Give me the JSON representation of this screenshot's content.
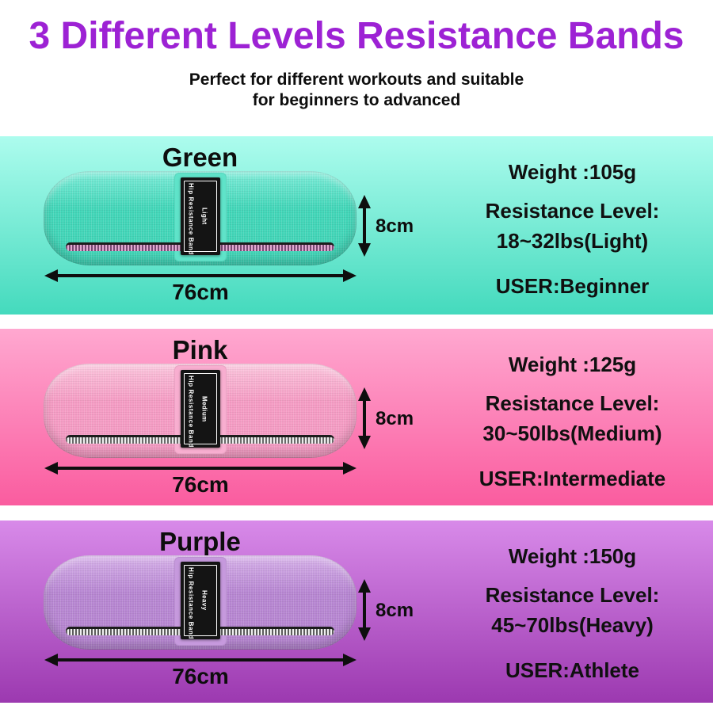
{
  "page": {
    "title": "3 Different Levels Resistance Bands",
    "title_color": "#9d22d4",
    "subtitle": [
      "Perfect for different workouts and suitable",
      "for beginners to advanced"
    ]
  },
  "tag_brand": "Hip Resistance Band",
  "sections": [
    {
      "name": "Green",
      "level": "Light",
      "weight": "Weight :105g",
      "resistance_label": "Resistance Level:",
      "resistance_value": "18~32lbs(Light)",
      "user": "USER:Beginner",
      "length": "76cm",
      "width": "8cm",
      "colors": {
        "bg_top": "#adfcee",
        "bg_bottom": "#44dabd",
        "band": "#41d6b8",
        "band_light": "#7cecd8",
        "tab": "#5fe3c9",
        "strip_dark": "#7a4a74",
        "strip_light": "#e2aad1"
      }
    },
    {
      "name": "Pink",
      "level": "Medium",
      "weight": "Weight :125g",
      "resistance_label": "Resistance Level:",
      "resistance_value": "30~50lbs(Medium)",
      "user": "USER:Intermediate",
      "length": "76cm",
      "width": "8cm",
      "colors": {
        "bg_top": "#ffa8d0",
        "bg_bottom": "#fa5c9f",
        "band": "#f59cc4",
        "band_light": "#fbc4dc",
        "tab": "#f8aed0",
        "strip_dark": "#6a6a6a",
        "strip_light": "#ededed"
      }
    },
    {
      "name": "Purple",
      "level": "Heavy",
      "weight": "Weight :150g",
      "resistance_label": "Resistance Level:",
      "resistance_value": "45~70lbs(Heavy)",
      "user": "USER:Athlete",
      "length": "76cm",
      "width": "8cm",
      "colors": {
        "bg_top": "#d88ae9",
        "bg_bottom": "#9c39b0",
        "band": "#b786d2",
        "band_light": "#d6b0e9",
        "tab": "#c699dd",
        "strip_dark": "#5d5d5d",
        "strip_light": "#efefef"
      }
    }
  ]
}
